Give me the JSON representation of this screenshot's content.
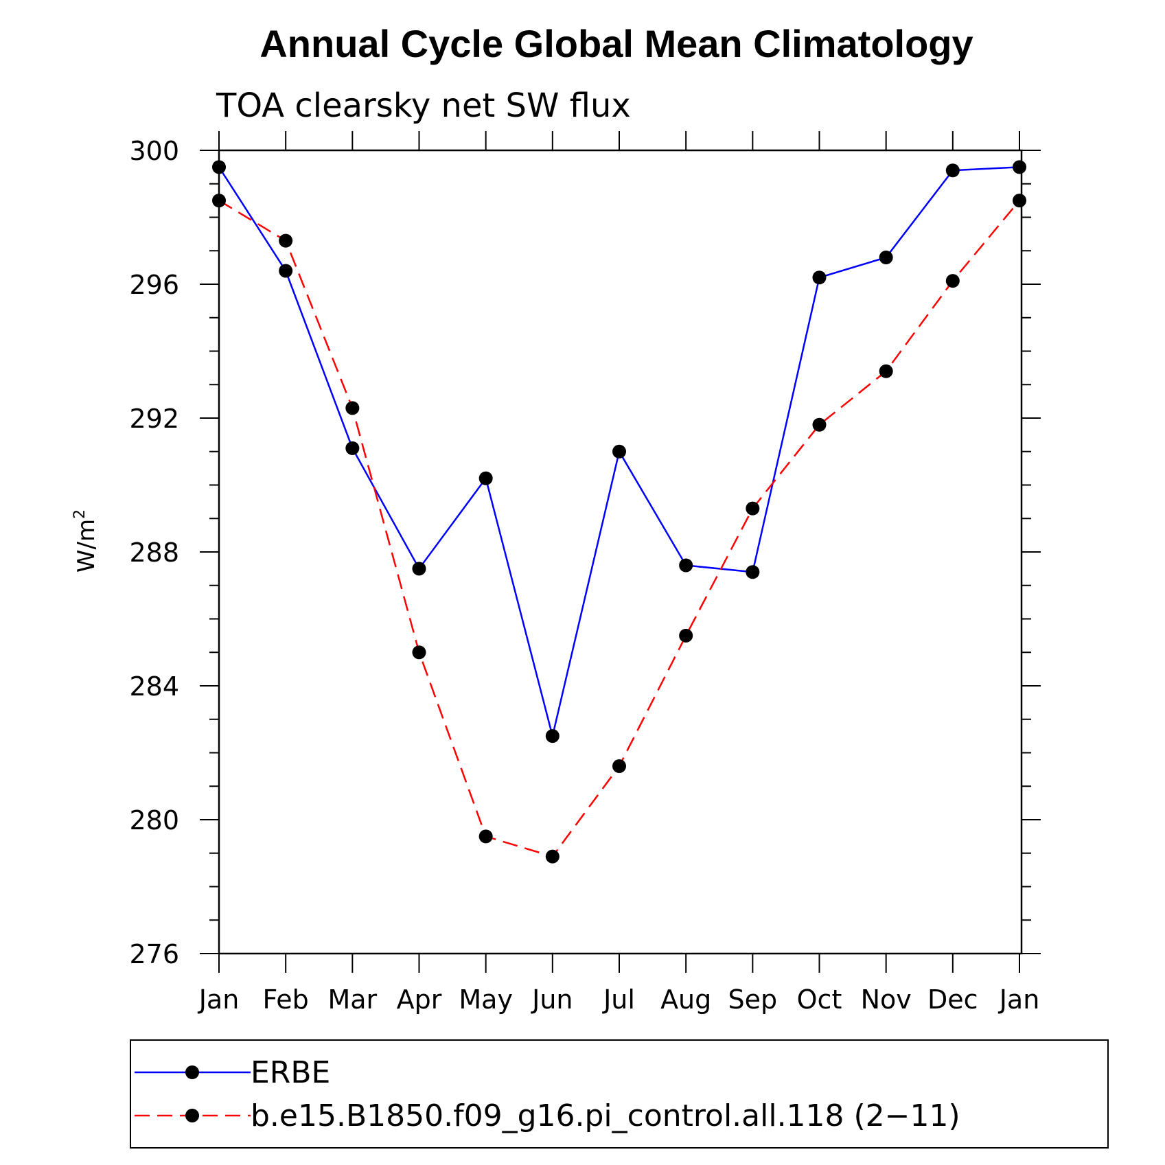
{
  "chart_data": {
    "type": "line",
    "title": "Annual Cycle Global Mean Climatology",
    "subtitle": "TOA clearsky net SW flux",
    "ylabel": "W/m",
    "ylabel_superscript": "2",
    "categories": [
      "Jan",
      "Feb",
      "Mar",
      "Apr",
      "May",
      "Jun",
      "Jul",
      "Aug",
      "Sep",
      "Oct",
      "Nov",
      "Dec",
      "Jan"
    ],
    "ylim": [
      276,
      300
    ],
    "yticks": [
      276,
      280,
      284,
      288,
      292,
      296,
      300
    ],
    "series": [
      {
        "name": "ERBE",
        "color": "#0000ff",
        "dash": "solid",
        "marker": "filled-circle",
        "values": [
          299.5,
          296.4,
          291.1,
          287.5,
          290.2,
          282.5,
          291.0,
          287.6,
          287.4,
          296.2,
          296.8,
          299.4,
          299.5
        ]
      },
      {
        "name": "b.e15.B1850.f09_g16.pi_control.all.118 (2−11)",
        "color": "#ff0000",
        "dash": "dashed",
        "marker": "filled-circle",
        "values": [
          298.5,
          297.3,
          292.3,
          285.0,
          279.5,
          278.9,
          281.6,
          285.5,
          289.3,
          291.8,
          293.4,
          296.1,
          298.5
        ]
      }
    ],
    "grid": false,
    "legend_position": "bottom"
  }
}
